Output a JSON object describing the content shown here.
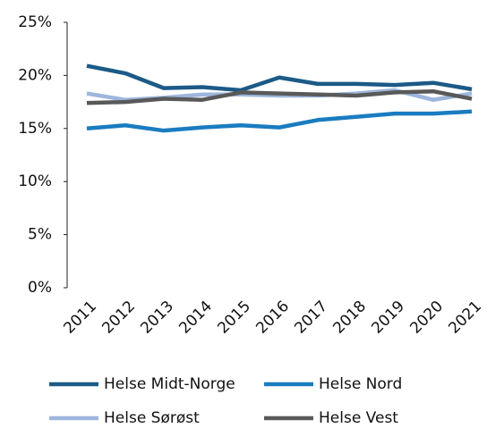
{
  "chart_data": {
    "type": "line",
    "categories": [
      "2011",
      "2012",
      "2013",
      "2014",
      "2015",
      "2016",
      "2017",
      "2018",
      "2019",
      "2020",
      "2021"
    ],
    "series": [
      {
        "name": "Helse Midt-Norge",
        "color": "#1c5a87",
        "values": [
          20.9,
          20.2,
          18.8,
          18.9,
          18.6,
          19.8,
          19.2,
          19.2,
          19.1,
          19.3,
          18.7
        ]
      },
      {
        "name": "Helse Nord",
        "color": "#1a7cc0",
        "values": [
          15.0,
          15.3,
          14.8,
          15.1,
          15.3,
          15.1,
          15.8,
          16.1,
          16.4,
          16.4,
          16.6
        ]
      },
      {
        "name": "Helse Sørøst",
        "color": "#9db6dd",
        "values": [
          18.3,
          17.7,
          17.9,
          18.2,
          18.2,
          18.1,
          18.1,
          18.3,
          18.6,
          17.7,
          18.3
        ]
      },
      {
        "name": "Helse Vest",
        "color": "#595959",
        "values": [
          17.4,
          17.5,
          17.8,
          17.7,
          18.4,
          18.3,
          18.2,
          18.1,
          18.4,
          18.5,
          17.8
        ]
      }
    ],
    "ylim": [
      0,
      25
    ],
    "yticks": [
      {
        "value": 0,
        "label": "0%"
      },
      {
        "value": 5,
        "label": "5%"
      },
      {
        "value": 10,
        "label": "10%"
      },
      {
        "value": 15,
        "label": "15%"
      },
      {
        "value": 20,
        "label": "20%"
      },
      {
        "value": 25,
        "label": "25%"
      }
    ],
    "grid": false
  }
}
